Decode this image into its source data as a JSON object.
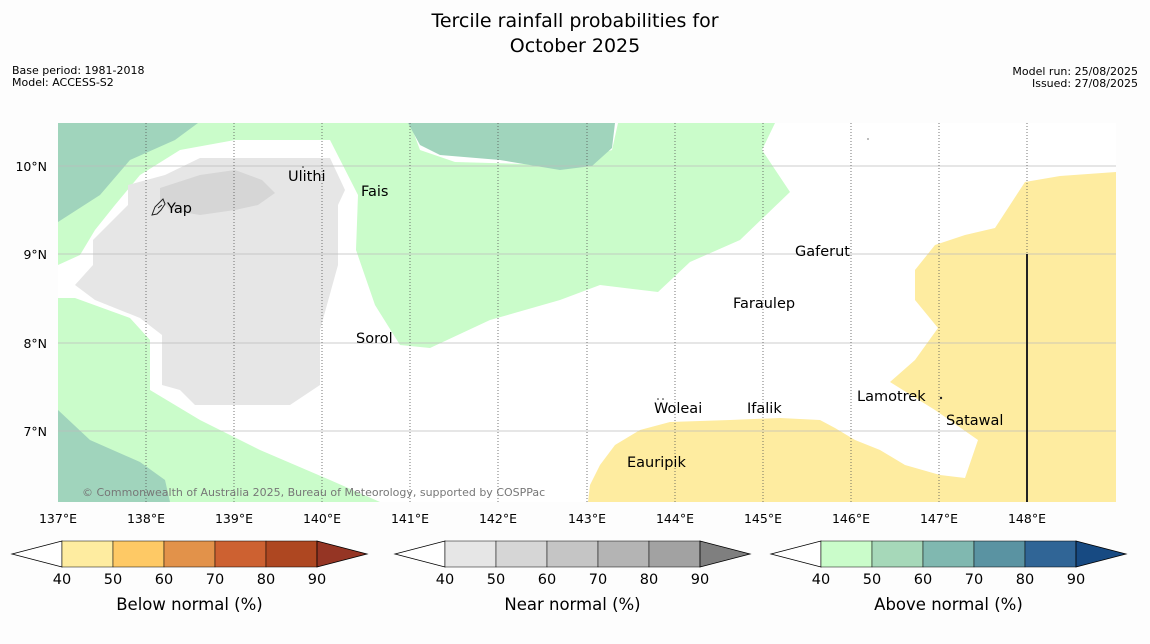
{
  "title_line1": "Tercile rainfall probabilities for",
  "title_line2": "October 2025",
  "meta": {
    "base_period": "Base period: 1981-2018",
    "model": "Model: ACCESS-S2",
    "model_run": "Model run: 25/08/2025",
    "issued": "Issued: 27/08/2025"
  },
  "map": {
    "lon_range": [
      137,
      149
    ],
    "lat_range": [
      6.2,
      10.5
    ],
    "lon_ticks": [
      "137°E",
      "138°E",
      "139°E",
      "140°E",
      "141°E",
      "142°E",
      "143°E",
      "144°E",
      "145°E",
      "146°E",
      "147°E",
      "148°E"
    ],
    "lat_ticks": [
      "10°N",
      "9°N",
      "8°N",
      "7°N"
    ],
    "places": [
      {
        "name": "Ulithi"
      },
      {
        "name": "Fais"
      },
      {
        "name": "Yap"
      },
      {
        "name": "Gaferut"
      },
      {
        "name": "Faraulep"
      },
      {
        "name": "Sorol"
      },
      {
        "name": "Woleai"
      },
      {
        "name": "Ifalik"
      },
      {
        "name": "Lamotrek"
      },
      {
        "name": "Satawal"
      },
      {
        "name": "Eauripik"
      }
    ],
    "copyright": "© Commonwealth of Australia 2025, Bureau of Meteorology, supported by COSPPac"
  },
  "colorbars": [
    {
      "label": "Below normal (%)",
      "ticks": [
        "40",
        "50",
        "60",
        "70",
        "80",
        "90"
      ],
      "under_color": "#ffffff",
      "colors": [
        "#feeca0",
        "#fec965",
        "#e2924a",
        "#cd6131",
        "#ae4721"
      ],
      "over_color": "#953524"
    },
    {
      "label": "Near normal (%)",
      "ticks": [
        "40",
        "50",
        "60",
        "70",
        "80",
        "90"
      ],
      "under_color": "#ffffff",
      "colors": [
        "#e6e6e6",
        "#d6d6d6",
        "#c5c5c5",
        "#b4b4b4",
        "#a2a2a2"
      ],
      "over_color": "#7f7f7f"
    },
    {
      "label": "Above normal (%)",
      "ticks": [
        "40",
        "50",
        "60",
        "70",
        "80",
        "90"
      ],
      "under_color": "#ffffff",
      "colors": [
        "#cafcca",
        "#a6d8b9",
        "#80b8b0",
        "#5a93a2",
        "#306596"
      ],
      "over_color": "#174a82"
    }
  ]
}
